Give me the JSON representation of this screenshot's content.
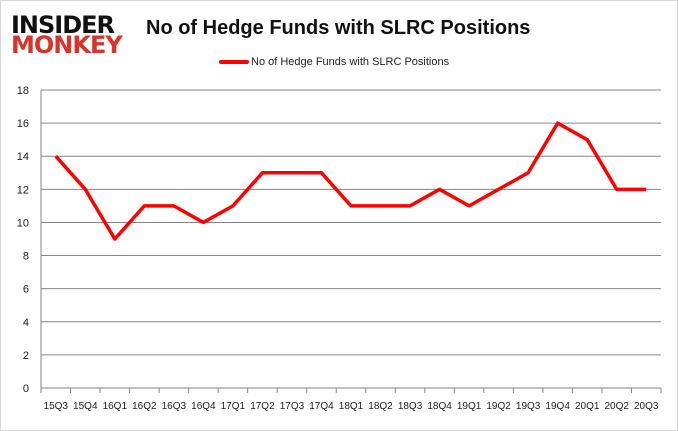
{
  "logo": {
    "line1": "INSIDER",
    "line2": "MONKEY"
  },
  "chart_data": {
    "type": "line",
    "title": "No of Hedge Funds with SLRC Positions",
    "categories": [
      "15Q3",
      "15Q4",
      "16Q1",
      "16Q2",
      "16Q3",
      "16Q4",
      "17Q1",
      "17Q2",
      "17Q3",
      "17Q4",
      "18Q1",
      "18Q2",
      "18Q3",
      "18Q4",
      "19Q1",
      "19Q2",
      "19Q3",
      "19Q4",
      "20Q1",
      "20Q2",
      "20Q3"
    ],
    "series": [
      {
        "name": "No of Hedge Funds with SLRC Positions",
        "color": "#ff0000",
        "values": [
          14,
          12,
          9,
          11,
          11,
          10,
          11,
          13,
          13,
          13,
          11,
          11,
          11,
          12,
          11,
          12,
          13,
          16,
          15,
          12,
          12
        ]
      }
    ],
    "ylim": [
      0,
      18
    ],
    "yticks": [
      0,
      2,
      4,
      6,
      8,
      10,
      12,
      14,
      16,
      18
    ],
    "grid": true,
    "legend": "top"
  }
}
